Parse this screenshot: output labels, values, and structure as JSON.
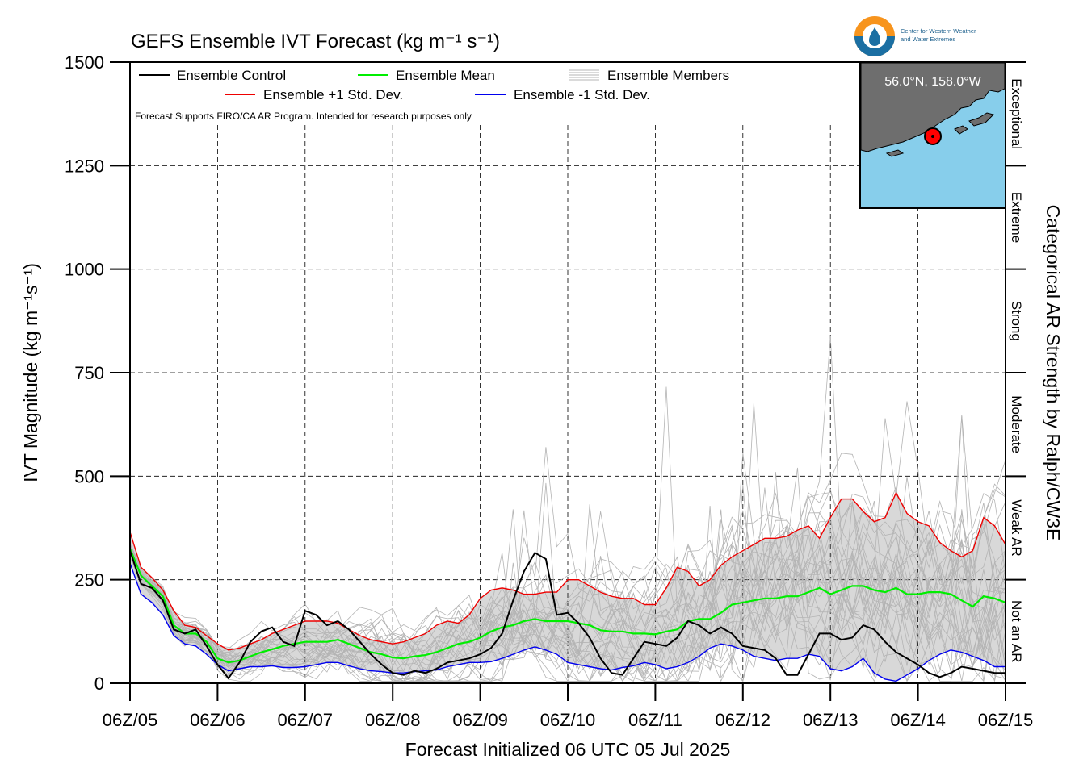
{
  "logo": {
    "line1": "Center for Western Weather",
    "line2": "and Water Extremes"
  },
  "inset": {
    "label": "56.0°N, 158.0°W",
    "colors": {
      "ocean": "#87ceeb",
      "land": "#6e6e6e",
      "marker": "#ff0000"
    }
  },
  "footer_note": "Forecast Supports FIRO/CA AR Program. Intended for research purposes only",
  "chart_data": {
    "type": "line",
    "title": "GEFS Ensemble IVT Forecast (kg m⁻¹ s⁻¹)",
    "xlabel": "Forecast Initialized 06 UTC 05 Jul 2025",
    "ylabel": "IVT Magnitude (kg m⁻¹s⁻¹)",
    "y2label": "Categorical AR Strength by Ralph/CW3E",
    "ylim": [
      0,
      1500
    ],
    "xlim": [
      0,
      240
    ],
    "x_unit": "forecast hour",
    "yticks": [
      0,
      250,
      500,
      750,
      1000,
      1250,
      1500
    ],
    "xticks": [
      {
        "x": 0,
        "label": "06Z/05"
      },
      {
        "x": 24,
        "label": "06Z/06"
      },
      {
        "x": 48,
        "label": "06Z/07"
      },
      {
        "x": 72,
        "label": "06Z/08"
      },
      {
        "x": 96,
        "label": "06Z/09"
      },
      {
        "x": 120,
        "label": "06Z/10"
      },
      {
        "x": 144,
        "label": "06Z/11"
      },
      {
        "x": 168,
        "label": "06Z/12"
      },
      {
        "x": 192,
        "label": "06Z/13"
      },
      {
        "x": 216,
        "label": "06Z/14"
      },
      {
        "x": 240,
        "label": "06Z/15"
      }
    ],
    "categories_right": [
      {
        "label": "Not an AR",
        "from": 0,
        "to": 250
      },
      {
        "label": "Weak AR",
        "from": 250,
        "to": 500
      },
      {
        "label": "Moderate",
        "from": 500,
        "to": 750
      },
      {
        "label": "Strong",
        "from": 750,
        "to": 1000
      },
      {
        "label": "Extreme",
        "from": 1000,
        "to": 1250
      },
      {
        "label": "Exceptional",
        "from": 1250,
        "to": 1500
      }
    ],
    "grid": true,
    "legend_position": "top-left",
    "colors": {
      "control": "#000000",
      "mean": "#00ee00",
      "plus_sd": "#ee0000",
      "minus_sd": "#0000ee",
      "members": "#b4b4b4",
      "band": "#d8d8d8"
    },
    "legend": [
      {
        "label": "Ensemble Control",
        "key": "control"
      },
      {
        "label": "Ensemble Mean",
        "key": "mean"
      },
      {
        "label": "Ensemble Members",
        "key": "members"
      },
      {
        "label": "Ensemble +1 Std. Dev.",
        "key": "plus_sd"
      },
      {
        "label": "Ensemble -1 Std. Dev.",
        "key": "minus_sd"
      }
    ],
    "series": [
      {
        "name": "Ensemble Control",
        "x": [
          0,
          3,
          6,
          9,
          12,
          15,
          18,
          21,
          24,
          27,
          30,
          33,
          36,
          39,
          42,
          45,
          48,
          51,
          54,
          57,
          60,
          63,
          66,
          69,
          72,
          75,
          78,
          81,
          84,
          87,
          90,
          93,
          96,
          99,
          102,
          105,
          108,
          111,
          114,
          117,
          120,
          123,
          126,
          129,
          132,
          135,
          138,
          141,
          144,
          147,
          150,
          153,
          156,
          159,
          162,
          165,
          168,
          171,
          174,
          177,
          180,
          183,
          186,
          189,
          192,
          195,
          198,
          201,
          204,
          207,
          210,
          213,
          216,
          219,
          222,
          225,
          228,
          231,
          234,
          237,
          240
        ],
        "y": [
          320,
          240,
          230,
          200,
          130,
          120,
          130,
          90,
          45,
          12,
          50,
          100,
          125,
          135,
          100,
          90,
          175,
          165,
          140,
          150,
          130,
          100,
          70,
          45,
          25,
          20,
          30,
          25,
          35,
          50,
          55,
          60,
          70,
          85,
          120,
          200,
          270,
          315,
          300,
          165,
          170,
          145,
          110,
          60,
          25,
          20,
          60,
          100,
          95,
          90,
          110,
          150,
          140,
          120,
          135,
          120,
          90,
          85,
          80,
          60,
          20,
          20,
          70,
          120,
          120,
          105,
          110,
          140,
          130,
          100,
          75,
          60,
          45,
          25,
          15,
          25,
          40,
          35,
          30,
          25,
          25
        ]
      },
      {
        "name": "Ensemble Mean",
        "x": [
          0,
          3,
          6,
          9,
          12,
          15,
          18,
          21,
          24,
          27,
          30,
          33,
          36,
          39,
          42,
          45,
          48,
          51,
          54,
          57,
          60,
          63,
          66,
          69,
          72,
          75,
          78,
          81,
          84,
          87,
          90,
          93,
          96,
          99,
          102,
          105,
          108,
          111,
          114,
          117,
          120,
          123,
          126,
          129,
          132,
          135,
          138,
          141,
          144,
          147,
          150,
          153,
          156,
          159,
          162,
          165,
          168,
          171,
          174,
          177,
          180,
          183,
          186,
          189,
          192,
          195,
          198,
          201,
          204,
          207,
          210,
          213,
          216,
          219,
          222,
          225,
          228,
          231,
          234,
          237,
          240
        ],
        "y": [
          325,
          260,
          235,
          210,
          140,
          120,
          120,
          100,
          60,
          50,
          55,
          65,
          75,
          82,
          90,
          95,
          100,
          100,
          100,
          105,
          95,
          85,
          75,
          70,
          62,
          60,
          65,
          68,
          75,
          85,
          95,
          100,
          110,
          125,
          135,
          140,
          150,
          155,
          150,
          150,
          150,
          145,
          140,
          128,
          125,
          125,
          120,
          120,
          118,
          125,
          130,
          150,
          155,
          155,
          170,
          190,
          195,
          200,
          205,
          205,
          210,
          210,
          220,
          230,
          215,
          225,
          235,
          235,
          225,
          220,
          230,
          215,
          215,
          220,
          220,
          215,
          200,
          185,
          210,
          205,
          195
        ]
      },
      {
        "name": "Ensemble +1 Std. Dev.",
        "x": [
          0,
          3,
          6,
          9,
          12,
          15,
          18,
          21,
          24,
          27,
          30,
          33,
          36,
          39,
          42,
          45,
          48,
          51,
          54,
          57,
          60,
          63,
          66,
          69,
          72,
          75,
          78,
          81,
          84,
          87,
          90,
          93,
          96,
          99,
          102,
          105,
          108,
          111,
          114,
          117,
          120,
          123,
          126,
          129,
          132,
          135,
          138,
          141,
          144,
          147,
          150,
          153,
          156,
          159,
          162,
          165,
          168,
          171,
          174,
          177,
          180,
          183,
          186,
          189,
          192,
          195,
          198,
          201,
          204,
          207,
          210,
          213,
          216,
          219,
          222,
          225,
          228,
          231,
          234,
          237,
          240
        ],
        "y": [
          365,
          280,
          255,
          225,
          175,
          140,
          135,
          115,
          95,
          80,
          85,
          95,
          105,
          120,
          130,
          140,
          150,
          150,
          150,
          145,
          130,
          115,
          105,
          100,
          95,
          100,
          110,
          120,
          140,
          150,
          145,
          165,
          205,
          225,
          230,
          225,
          215,
          215,
          220,
          220,
          250,
          250,
          235,
          220,
          210,
          205,
          205,
          190,
          190,
          230,
          280,
          270,
          235,
          250,
          285,
          305,
          320,
          335,
          350,
          350,
          355,
          370,
          380,
          350,
          400,
          445,
          445,
          415,
          390,
          400,
          460,
          410,
          390,
          380,
          340,
          320,
          305,
          320,
          400,
          380,
          335
        ]
      },
      {
        "name": "Ensemble -1 Std. Dev.",
        "x": [
          0,
          3,
          6,
          9,
          12,
          15,
          18,
          21,
          24,
          27,
          30,
          33,
          36,
          39,
          42,
          45,
          48,
          51,
          54,
          57,
          60,
          63,
          66,
          69,
          72,
          75,
          78,
          81,
          84,
          87,
          90,
          93,
          96,
          99,
          102,
          105,
          108,
          111,
          114,
          117,
          120,
          123,
          126,
          129,
          132,
          135,
          138,
          141,
          144,
          147,
          150,
          153,
          156,
          159,
          162,
          165,
          168,
          171,
          174,
          177,
          180,
          183,
          186,
          189,
          192,
          195,
          198,
          201,
          204,
          207,
          210,
          213,
          216,
          219,
          222,
          225,
          228,
          231,
          234,
          237,
          240
        ],
        "y": [
          290,
          215,
          195,
          165,
          115,
          95,
          90,
          70,
          45,
          30,
          35,
          40,
          40,
          42,
          38,
          38,
          40,
          45,
          50,
          50,
          42,
          35,
          30,
          28,
          25,
          25,
          28,
          30,
          32,
          40,
          45,
          50,
          50,
          52,
          60,
          70,
          80,
          88,
          80,
          70,
          50,
          45,
          40,
          35,
          32,
          38,
          42,
          50,
          45,
          35,
          40,
          50,
          65,
          85,
          95,
          90,
          80,
          65,
          60,
          55,
          60,
          60,
          70,
          65,
          35,
          30,
          40,
          60,
          25,
          10,
          5,
          20,
          35,
          55,
          70,
          80,
          75,
          65,
          55,
          40,
          40
        ]
      }
    ],
    "members_note": "30 ensemble member traces (approximate)"
  }
}
